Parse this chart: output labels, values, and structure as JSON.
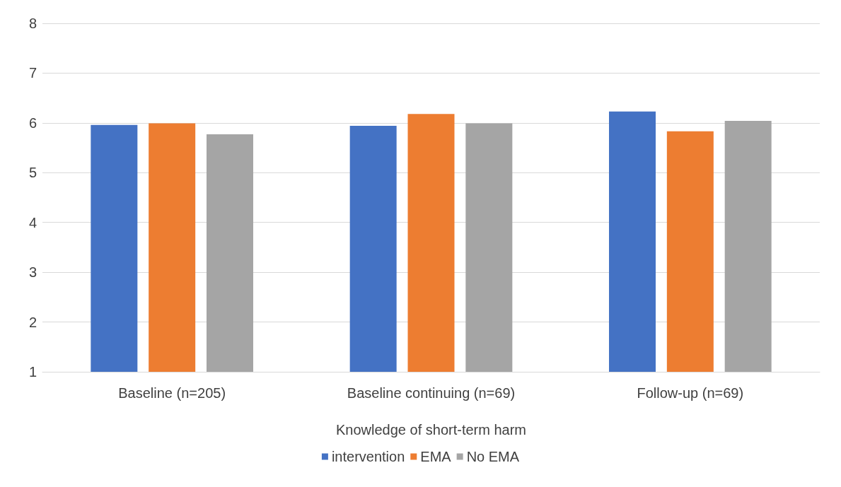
{
  "chart_data": {
    "type": "bar",
    "xlabel": "Knowledge of short-term harm",
    "categories": [
      "Baseline (n=205)",
      "Baseline continuing (n=69)",
      "Follow-up (n=69)"
    ],
    "series": [
      {
        "name": "intervention",
        "color": "#4472c4",
        "values": [
          5.96,
          5.94,
          6.23
        ]
      },
      {
        "name": "EMA",
        "color": "#ed7d31",
        "values": [
          5.99,
          6.18,
          5.83
        ]
      },
      {
        "name": "No EMA",
        "color": "#a5a5a5",
        "values": [
          5.77,
          5.99,
          6.04
        ]
      }
    ],
    "ylim": [
      1,
      8
    ],
    "yticks": [
      1,
      2,
      3,
      4,
      5,
      6,
      7,
      8
    ],
    "grid": "y",
    "legend": "bottom"
  }
}
